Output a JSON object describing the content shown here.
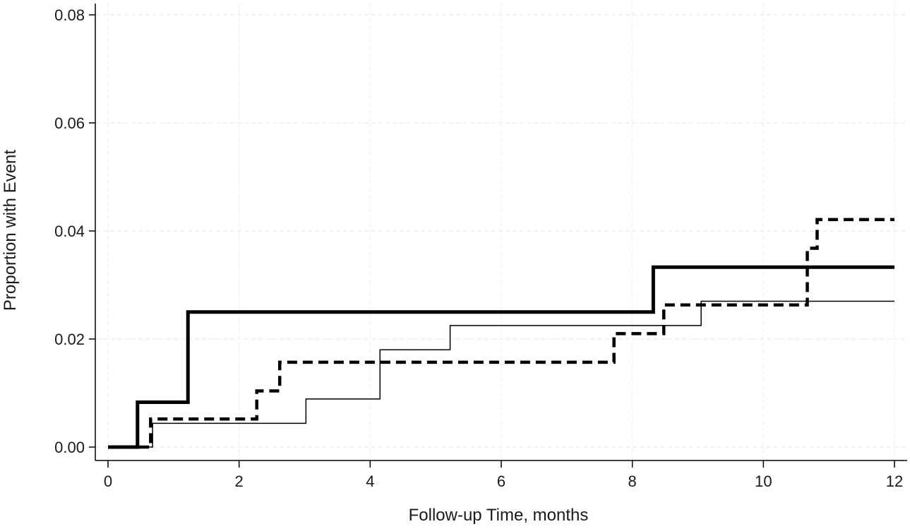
{
  "chart_data": {
    "type": "line",
    "step": true,
    "title": "",
    "xlabel": "Follow-up Time, months",
    "ylabel": "Proportion with Event",
    "xlim": [
      0,
      12
    ],
    "ylim": [
      0,
      0.08
    ],
    "xticks": [
      "0",
      "2",
      "4",
      "6",
      "8",
      "10",
      "12"
    ],
    "yticks": [
      "0.00",
      "0.02",
      "0.04",
      "0.06",
      "0.08"
    ],
    "grid": "dashed, light",
    "legend": "none",
    "series": [
      {
        "style": "thick-solid",
        "color": "#000000",
        "x": [
          0,
          0.45,
          1.22,
          8.32,
          12
        ],
        "y": [
          0,
          0.0083,
          0.025,
          0.0333,
          0.0333
        ]
      },
      {
        "style": "thick-dashed",
        "color": "#000000",
        "x": [
          0,
          0.65,
          2.27,
          2.62,
          7.72,
          8.48,
          10.67,
          10.82,
          12
        ],
        "y": [
          0,
          0.0052,
          0.0104,
          0.0157,
          0.021,
          0.0263,
          0.0368,
          0.0421,
          0.0421
        ]
      },
      {
        "style": "thin-solid",
        "color": "#000000",
        "x": [
          0,
          0.68,
          3.02,
          4.15,
          5.22,
          9.05,
          12
        ],
        "y": [
          0,
          0.0044,
          0.0089,
          0.018,
          0.0225,
          0.027,
          0.027
        ]
      }
    ]
  }
}
